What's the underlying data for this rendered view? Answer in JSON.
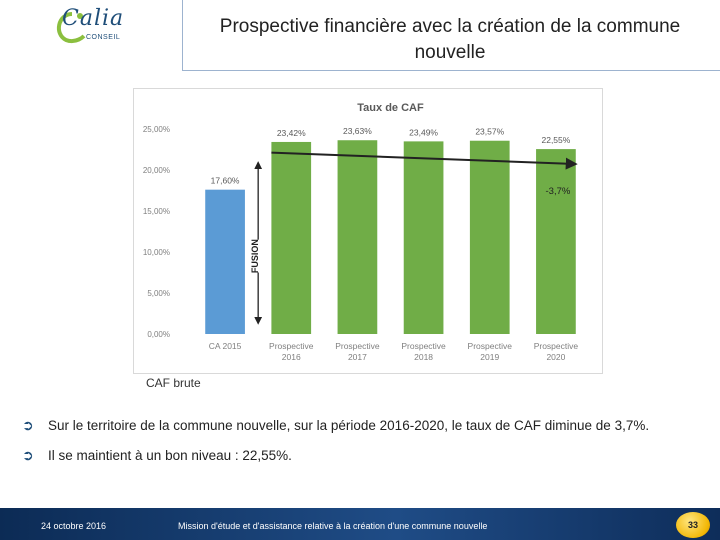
{
  "header": {
    "logo_text": "Calia",
    "logo_sub": "CONSEIL",
    "title": "Prospective financière avec la création de la commune nouvelle"
  },
  "chart_data": {
    "type": "bar",
    "title": "Taux de CAF",
    "categories": [
      "CA 2015",
      "Prospective 2016",
      "Prospective 2017",
      "Prospective 2018",
      "Prospective 2019",
      "Prospective 2020"
    ],
    "values": [
      17.6,
      23.42,
      23.63,
      23.49,
      23.57,
      22.55
    ],
    "value_labels": [
      "17,60%",
      "23,42%",
      "23,63%",
      "23,49%",
      "23,57%",
      "22,55%"
    ],
    "bar_colors": [
      "#5b9bd5",
      "#70ad47",
      "#70ad47",
      "#70ad47",
      "#70ad47",
      "#70ad47"
    ],
    "ylim": [
      0,
      25
    ],
    "y_ticks": [
      0,
      5,
      10,
      15,
      20,
      25
    ],
    "y_tick_labels": [
      "0,00%",
      "5,00%",
      "10,00%",
      "15,00%",
      "20,00%",
      "25,00%"
    ],
    "annotations": {
      "fusion": "FUSION",
      "trend": "-3,7%"
    },
    "trend_from": 1,
    "trend_to": 5
  },
  "caption": "CAF brute",
  "bullets": [
    "Sur le territoire de la commune nouvelle, sur la période 2016-2020, le taux de CAF diminue de 3,7%.",
    "Il se maintient à un bon niveau : 22,55%."
  ],
  "footer": {
    "date": "24 octobre 2016",
    "mission": "Mission d'étude et d'assistance relative à la création d'une commune nouvelle",
    "page": "33"
  },
  "colors": {
    "accent": "#1f4e79",
    "footer": "#173f73"
  }
}
